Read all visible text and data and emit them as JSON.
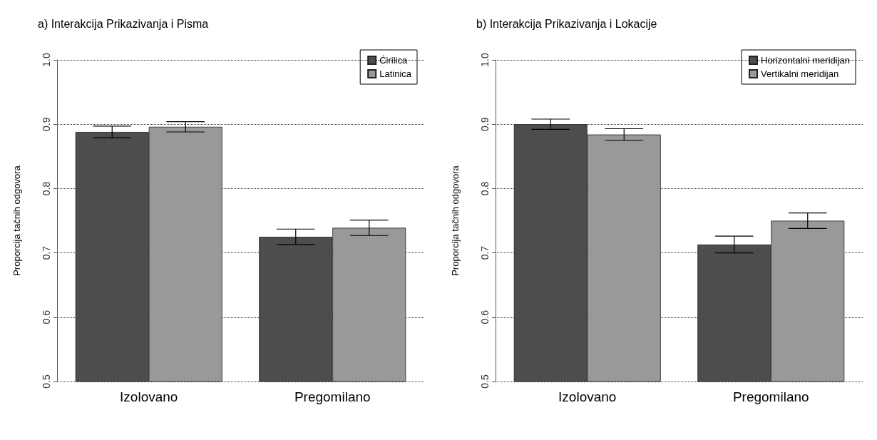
{
  "chart_data": [
    {
      "type": "bar",
      "title": "a) Interakcija Prikazivanja i Pisma",
      "ylabel": "Proporcija tačnih odgovora",
      "categories": [
        "Izolovano",
        "Pregomilano"
      ],
      "series": [
        {
          "name": "Ćirilica",
          "color": "#4d4d4d",
          "values": [
            0.888,
            0.725
          ],
          "errors": [
            0.009,
            0.012
          ]
        },
        {
          "name": "Latinica",
          "color": "#999999",
          "values": [
            0.896,
            0.739
          ],
          "errors": [
            0.008,
            0.012
          ]
        }
      ],
      "ylim": [
        0.5,
        1.0
      ],
      "yticks": [
        0.5,
        0.6,
        0.7,
        0.8,
        0.9,
        {
          "value": 1.0,
          "label": "1.0"
        }
      ],
      "grid": "y",
      "legend": "top right"
    },
    {
      "type": "bar",
      "title": "b) Interakcija Prikazivanja i Lokacije",
      "ylabel": "Proporcija tačnih odgovora",
      "categories": [
        "Izolovano",
        "Pregomilano"
      ],
      "series": [
        {
          "name": "Horizontalni meridijan",
          "color": "#4d4d4d",
          "values": [
            0.9,
            0.713
          ],
          "errors": [
            0.008,
            0.013
          ]
        },
        {
          "name": "Vertikalni meridijan",
          "color": "#999999",
          "values": [
            0.884,
            0.75
          ],
          "errors": [
            0.009,
            0.012
          ]
        }
      ],
      "ylim": [
        0.5,
        1.0
      ],
      "yticks": [
        0.5,
        0.6,
        0.7,
        0.8,
        0.9,
        {
          "value": 1.0,
          "label": "1.0"
        }
      ],
      "grid": "y",
      "legend": "top right"
    }
  ]
}
